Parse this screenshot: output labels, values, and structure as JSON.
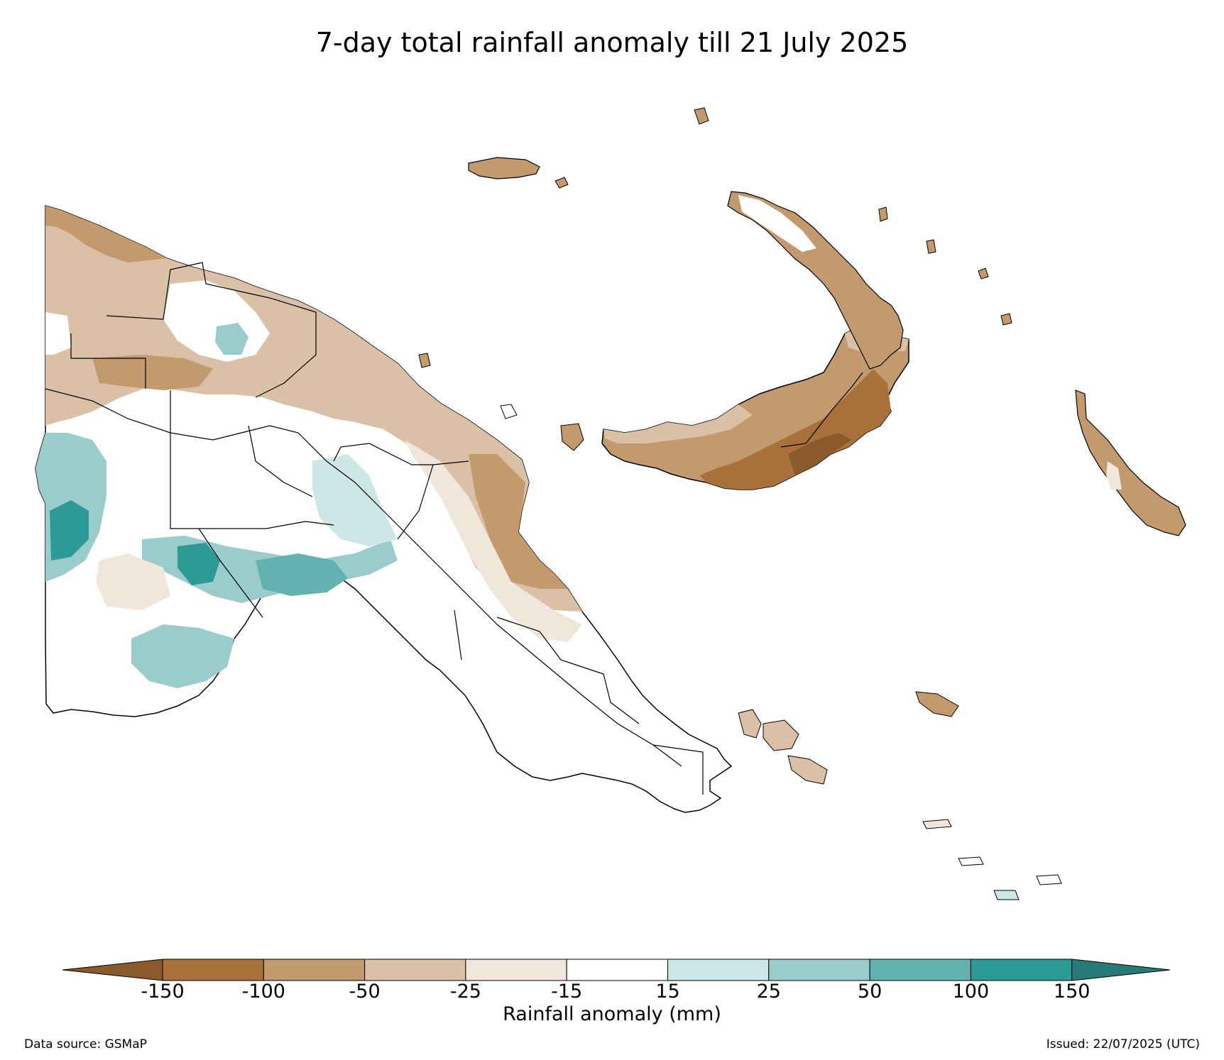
{
  "title": "7-day total rainfall anomaly till 21 July 2025",
  "colorbar": {
    "label": "Rainfall anomaly (mm)",
    "ticks": [
      "-150",
      "-100",
      "-50",
      "-25",
      "-15",
      "15",
      "25",
      "50",
      "100",
      "150"
    ],
    "bins": [
      {
        "range": "-150 to -100",
        "color": "#a8703a"
      },
      {
        "range": "-100 to -50",
        "color": "#c29a6e"
      },
      {
        "range": "-50 to -25",
        "color": "#d9c0a6"
      },
      {
        "range": "-25 to -15",
        "color": "#f0e6dc"
      },
      {
        "range": "-15 to 15",
        "color": "#ffffff"
      },
      {
        "range": "15 to 25",
        "color": "#cde6e6"
      },
      {
        "range": "25 to 50",
        "color": "#9acccc"
      },
      {
        "range": "50 to 100",
        "color": "#62b2b0"
      },
      {
        "range": "100 to 150",
        "color": "#2e9a96"
      }
    ],
    "extend_low_color": "#8a5a2b",
    "extend_high_color": "#287a78"
  },
  "footer": {
    "data_source": "Data source: GSMaP",
    "issued": "Issued: 22/07/2025 (UTC)"
  }
}
